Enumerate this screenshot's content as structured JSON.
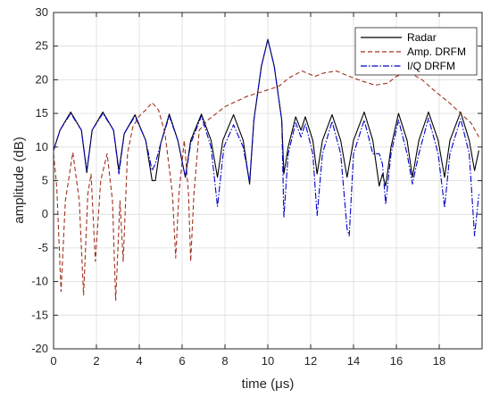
{
  "chart_data": {
    "type": "line",
    "xlabel": "time (μs)",
    "ylabel": "amplitude (dB)",
    "xlim": [
      0,
      20
    ],
    "ylim": [
      -20,
      30
    ],
    "xticks": [
      0,
      2,
      4,
      6,
      8,
      10,
      12,
      14,
      16,
      18
    ],
    "yticks": [
      -20,
      -15,
      -10,
      -5,
      0,
      5,
      10,
      15,
      20,
      25,
      30
    ],
    "grid": true,
    "legend_position": "top-right",
    "series": [
      {
        "name": "Radar",
        "color": "#000000",
        "style": "solid",
        "points": [
          [
            0,
            9.5
          ],
          [
            0.3,
            12.5
          ],
          [
            0.8,
            15.2
          ],
          [
            1.3,
            12.5
          ],
          [
            1.55,
            6.2
          ],
          [
            1.8,
            12.5
          ],
          [
            2.3,
            15.2
          ],
          [
            2.8,
            12.5
          ],
          [
            3.05,
            6.5
          ],
          [
            3.3,
            12
          ],
          [
            3.8,
            14.8
          ],
          [
            4.3,
            11
          ],
          [
            4.6,
            5
          ],
          [
            4.75,
            5
          ],
          [
            5,
            10.5
          ],
          [
            5.4,
            14.9
          ],
          [
            5.8,
            11
          ],
          [
            6.15,
            5.5
          ],
          [
            6.4,
            11
          ],
          [
            6.9,
            14.9
          ],
          [
            7.35,
            11
          ],
          [
            7.65,
            5.5
          ],
          [
            7.9,
            11
          ],
          [
            8.4,
            14.8
          ],
          [
            8.85,
            11
          ],
          [
            9.15,
            4.5
          ],
          [
            9.35,
            14
          ],
          [
            9.7,
            22
          ],
          [
            10,
            26
          ],
          [
            10.3,
            22
          ],
          [
            10.65,
            14
          ],
          [
            10.75,
            6
          ],
          [
            10.95,
            10
          ],
          [
            11.3,
            14.5
          ],
          [
            11.55,
            12.5
          ],
          [
            11.75,
            14.5
          ],
          [
            12.1,
            11
          ],
          [
            12.3,
            6
          ],
          [
            12.55,
            11
          ],
          [
            13,
            14.8
          ],
          [
            13.4,
            11
          ],
          [
            13.7,
            5.5
          ],
          [
            14,
            11
          ],
          [
            14.5,
            15.2
          ],
          [
            14.9,
            11
          ],
          [
            15.2,
            4.2
          ],
          [
            15.35,
            6
          ],
          [
            15.5,
            4.2
          ],
          [
            15.75,
            10
          ],
          [
            16.1,
            15
          ],
          [
            16.5,
            11
          ],
          [
            16.75,
            5.5
          ],
          [
            17.05,
            11
          ],
          [
            17.5,
            15.2
          ],
          [
            17.95,
            11
          ],
          [
            18.25,
            5.5
          ],
          [
            18.5,
            11
          ],
          [
            19,
            15.2
          ],
          [
            19.4,
            11
          ],
          [
            19.65,
            6.5
          ],
          [
            19.85,
            9.5
          ]
        ]
      },
      {
        "name": "Amp. DRFM",
        "color": "#A0321E",
        "style": "dashed",
        "points": [
          [
            0,
            9
          ],
          [
            0.15,
            4
          ],
          [
            0.35,
            -11.5
          ],
          [
            0.55,
            2
          ],
          [
            0.9,
            9.2
          ],
          [
            1.2,
            2
          ],
          [
            1.4,
            -12
          ],
          [
            1.6,
            3
          ],
          [
            1.75,
            6
          ],
          [
            1.95,
            -7
          ],
          [
            2.2,
            5
          ],
          [
            2.5,
            9
          ],
          [
            2.75,
            2
          ],
          [
            2.9,
            -12.8
          ],
          [
            3.1,
            2
          ],
          [
            3.25,
            -7
          ],
          [
            3.45,
            9
          ],
          [
            3.7,
            13
          ],
          [
            4,
            14.6
          ],
          [
            4.3,
            15.5
          ],
          [
            4.6,
            16.6
          ],
          [
            4.9,
            15.5
          ],
          [
            5.2,
            12
          ],
          [
            5.55,
            3
          ],
          [
            5.7,
            -6.5
          ],
          [
            5.85,
            3
          ],
          [
            6.1,
            11
          ],
          [
            6.3,
            3
          ],
          [
            6.4,
            -7
          ],
          [
            6.55,
            3
          ],
          [
            6.8,
            12.5
          ],
          [
            7.2,
            14
          ],
          [
            8,
            16
          ],
          [
            9,
            17.5
          ],
          [
            10,
            18.5
          ],
          [
            10.5,
            19
          ],
          [
            11,
            20.3
          ],
          [
            11.6,
            21.3
          ],
          [
            12.2,
            20.5
          ],
          [
            12.6,
            21
          ],
          [
            13.2,
            21.3
          ],
          [
            13.8,
            20.5
          ],
          [
            14.4,
            19.8
          ],
          [
            15,
            19.2
          ],
          [
            15.6,
            19.5
          ],
          [
            16,
            20.5
          ],
          [
            16.6,
            21.1
          ],
          [
            17.2,
            20
          ],
          [
            17.8,
            18.3
          ],
          [
            18.5,
            16.5
          ],
          [
            19,
            15
          ],
          [
            19.5,
            13.5
          ],
          [
            19.85,
            11.5
          ]
        ]
      },
      {
        "name": "I/Q DRFM",
        "color": "#0000CC",
        "style": "dashdot",
        "points": [
          [
            0,
            9.5
          ],
          [
            0.3,
            12.5
          ],
          [
            0.8,
            15
          ],
          [
            1.3,
            12.5
          ],
          [
            1.55,
            6.5
          ],
          [
            1.8,
            12.5
          ],
          [
            2.3,
            15
          ],
          [
            2.8,
            12.5
          ],
          [
            3.05,
            6
          ],
          [
            3.3,
            12
          ],
          [
            3.8,
            14.6
          ],
          [
            4.3,
            11
          ],
          [
            4.6,
            6.5
          ],
          [
            4.75,
            7.5
          ],
          [
            5,
            10.5
          ],
          [
            5.4,
            14.6
          ],
          [
            5.8,
            11
          ],
          [
            6.15,
            5.5
          ],
          [
            6.4,
            10.5
          ],
          [
            6.9,
            14.6
          ],
          [
            7.35,
            10
          ],
          [
            7.65,
            1.2
          ],
          [
            7.95,
            10
          ],
          [
            8.4,
            13.3
          ],
          [
            8.85,
            10
          ],
          [
            9.15,
            4.8
          ],
          [
            9.35,
            14
          ],
          [
            9.7,
            22
          ],
          [
            10,
            26
          ],
          [
            10.3,
            22
          ],
          [
            10.65,
            14
          ],
          [
            10.75,
            -0.4
          ],
          [
            10.95,
            9
          ],
          [
            11.3,
            13.6
          ],
          [
            11.55,
            11.5
          ],
          [
            11.75,
            13.5
          ],
          [
            12.1,
            9
          ],
          [
            12.3,
            -0.2
          ],
          [
            12.55,
            9
          ],
          [
            13,
            13.8
          ],
          [
            13.4,
            9
          ],
          [
            13.7,
            -2.2
          ],
          [
            13.8,
            -3.2
          ],
          [
            14,
            9
          ],
          [
            14.5,
            14
          ],
          [
            14.9,
            9
          ],
          [
            15.2,
            9
          ],
          [
            15.35,
            7.5
          ],
          [
            15.5,
            1.5
          ],
          [
            15.75,
            9
          ],
          [
            16.1,
            14
          ],
          [
            16.5,
            9
          ],
          [
            16.75,
            4.5
          ],
          [
            17.05,
            9
          ],
          [
            17.5,
            14.3
          ],
          [
            17.95,
            9
          ],
          [
            18.25,
            1
          ],
          [
            18.5,
            9
          ],
          [
            19,
            14.2
          ],
          [
            19.4,
            9
          ],
          [
            19.65,
            -3.2
          ],
          [
            19.85,
            3
          ]
        ]
      }
    ]
  }
}
